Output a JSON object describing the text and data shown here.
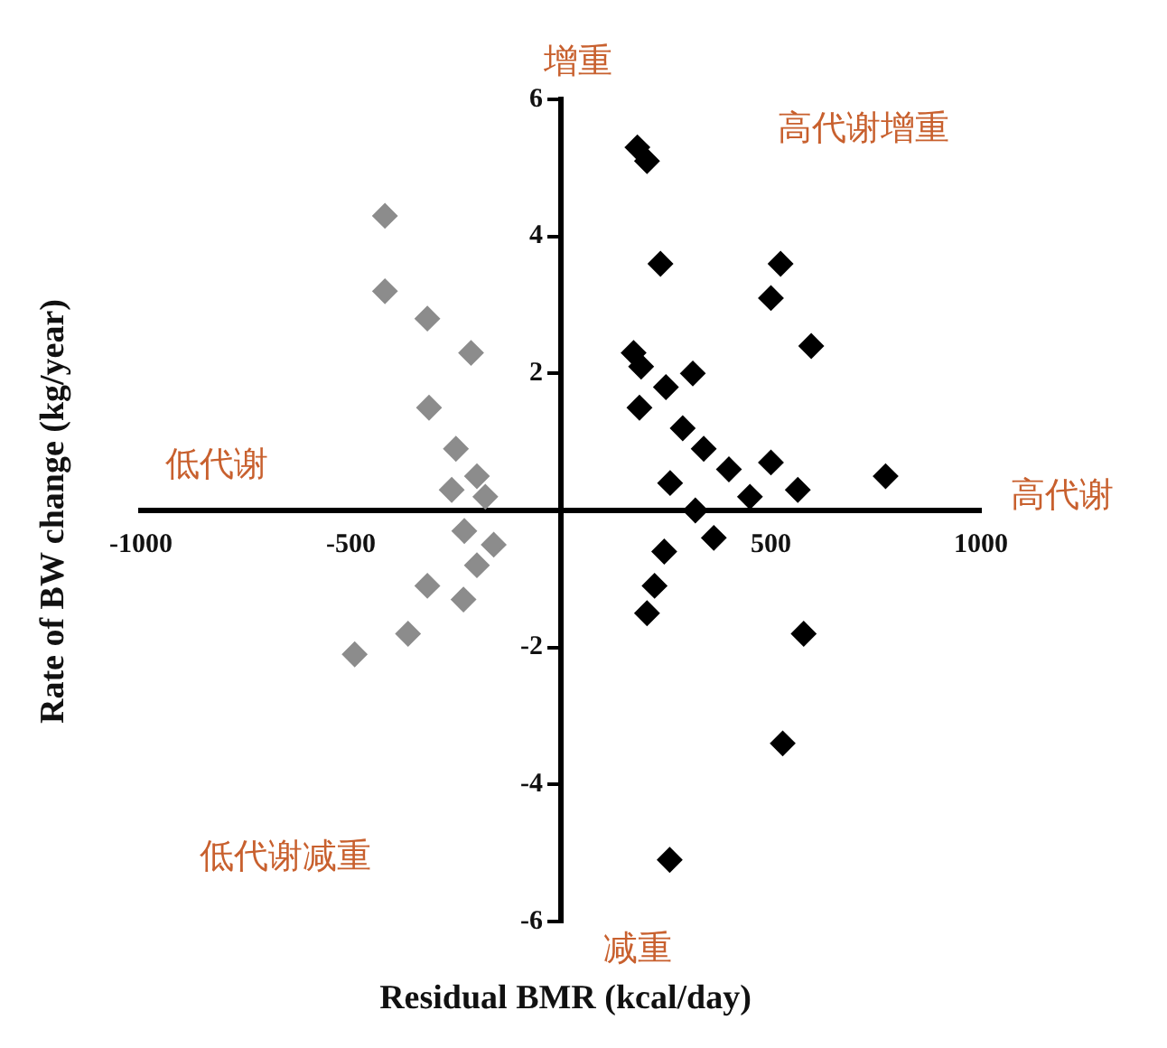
{
  "chart_data": {
    "type": "scatter",
    "xlabel": "Residual BMR (kcal/day)",
    "ylabel": "Rate of BW change (kg/year)",
    "annotations": [
      "增重",
      "高代谢增重",
      "低代谢",
      "高代谢",
      "低代谢减重",
      "减重"
    ],
    "marker": "diamond",
    "grid": false,
    "legend": false,
    "xlim": [
      -1000,
      1000
    ],
    "xticks": [
      -1000,
      -500,
      500,
      1000
    ],
    "ylim": [
      -6,
      6
    ],
    "yticks": [
      -6,
      -4,
      -2,
      2,
      4,
      6
    ],
    "series": [
      {
        "color": "#8c8c8c",
        "x": [
          -419,
          -419,
          -318,
          -214,
          -314,
          -250,
          -200,
          -180,
          -230,
          -160,
          -260,
          -200,
          -318,
          -232,
          -364,
          -491
        ],
        "values": [
          4.3,
          3.2,
          2.8,
          2.3,
          1.5,
          0.9,
          0.5,
          0.2,
          -0.3,
          -0.5,
          0.3,
          -0.8,
          -1.1,
          -1.3,
          -1.8,
          -2.1
        ]
      },
      {
        "color": "#000000",
        "x": [
          182,
          205,
          237,
          523,
          500,
          596,
          173,
          191,
          314,
          250,
          187,
          773,
          564,
          364,
          246,
          223,
          205,
          578,
          528,
          259,
          290,
          340,
          400,
          260,
          450,
          320,
          500
        ],
        "values": [
          5.3,
          5.1,
          3.6,
          3.6,
          3.1,
          2.4,
          2.3,
          2.1,
          2.0,
          1.8,
          1.5,
          0.5,
          0.3,
          -0.4,
          -0.6,
          -1.1,
          -1.5,
          -1.8,
          -3.4,
          -5.1,
          1.2,
          0.9,
          0.6,
          0.4,
          0.2,
          0.0,
          0.7
        ]
      }
    ]
  }
}
